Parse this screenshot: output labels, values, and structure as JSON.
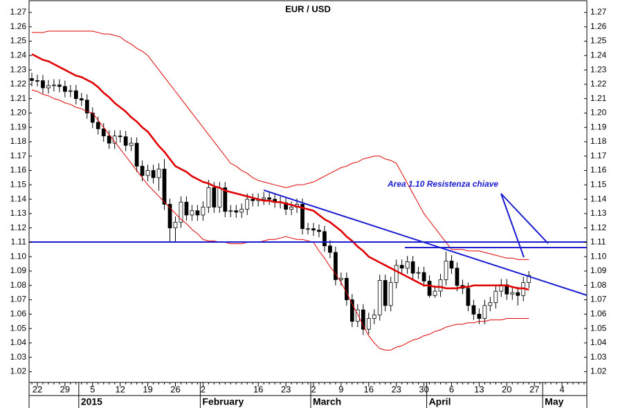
{
  "chart_data": {
    "type": "candlestick",
    "title": "EUR / USD",
    "annotation": "Area 1.10 Resistenza chiave",
    "categories": [
      null,
      "22",
      null,
      null,
      null,
      null,
      "29",
      null,
      null,
      null,
      null,
      "5",
      null,
      null,
      null,
      null,
      "12",
      null,
      null,
      null,
      null,
      "19",
      null,
      null,
      null,
      null,
      "26",
      null,
      null,
      null,
      null,
      "2",
      null,
      null,
      null,
      null,
      null,
      null,
      null,
      null,
      null,
      "16",
      null,
      null,
      null,
      null,
      "23",
      null,
      null,
      null,
      null,
      "2",
      null,
      null,
      null,
      null,
      "9",
      null,
      null,
      null,
      null,
      "16",
      null,
      null,
      null,
      null,
      "23",
      null,
      null,
      null,
      null,
      "30",
      null,
      null,
      null,
      null,
      "6",
      null,
      null,
      null,
      null,
      "13",
      null,
      null,
      null,
      null,
      "20",
      null,
      null,
      null,
      null,
      "27",
      null,
      null,
      null,
      null,
      "4",
      null,
      null,
      null,
      null
    ],
    "periods": [
      null,
      null,
      null,
      null,
      null,
      null,
      null,
      null,
      null,
      "2015",
      null,
      null,
      null,
      null,
      null,
      null,
      null,
      null,
      null,
      null,
      null,
      null,
      null,
      null,
      null,
      null,
      null,
      null,
      null,
      null,
      null,
      "February",
      null,
      null,
      null,
      null,
      null,
      null,
      null,
      null,
      null,
      null,
      null,
      null,
      null,
      null,
      null,
      null,
      null,
      null,
      null,
      "March",
      null,
      null,
      null,
      null,
      null,
      null,
      null,
      null,
      null,
      null,
      null,
      null,
      null,
      null,
      null,
      null,
      null,
      null,
      null,
      null,
      "April",
      null,
      null,
      null,
      null,
      null,
      null,
      null,
      null,
      null,
      null,
      null,
      null,
      null,
      null,
      null,
      null,
      null,
      null,
      null,
      null,
      "May",
      null,
      null,
      null,
      null,
      null
    ],
    "open": [
      1.224,
      1.2226,
      1.2225,
      1.2175,
      1.219,
      1.2195,
      1.2185,
      1.215,
      1.2155,
      1.21,
      1.209,
      1.2,
      1.1935,
      1.189,
      1.184,
      1.179,
      1.184,
      1.1835,
      1.1775,
      1.179,
      1.163,
      1.1565,
      1.16,
      1.155,
      1.161,
      1.1365,
      1.12,
      1.124,
      1.138,
      1.129,
      1.132,
      1.129,
      1.1345,
      1.148,
      1.1345,
      1.148,
      1.1315,
      1.132,
      1.131,
      1.133,
      1.14,
      1.139,
      1.14,
      1.141,
      1.14,
      1.138,
      1.1375,
      1.133,
      1.1345,
      1.1365,
      1.1195,
      1.1195,
      1.1185,
      1.1175,
      1.1075,
      1.103,
      1.084,
      1.085,
      1.07,
      1.055,
      1.063,
      1.0495,
      1.057,
      1.0595,
      1.0835,
      1.066,
      1.082,
      1.094,
      1.092,
      1.0965,
      1.0885,
      1.089,
      1.083,
      1.073,
      1.076,
      1.084,
      1.097,
      1.092,
      1.08,
      1.078,
      1.066,
      1.06,
      1.057,
      1.066,
      1.068,
      1.076,
      1.0805,
      1.074,
      1.075,
      1.073,
      1.082,
      null,
      null,
      null,
      null,
      null,
      null,
      null,
      null,
      null,
      null
    ],
    "high": [
      1.228,
      1.2266,
      1.2265,
      1.223,
      1.2235,
      1.2235,
      1.2225,
      1.2195,
      1.2195,
      1.214,
      1.213,
      1.204,
      1.1975,
      1.193,
      1.188,
      1.188,
      1.188,
      1.1875,
      1.183,
      1.183,
      1.167,
      1.164,
      1.164,
      1.165,
      1.168,
      1.1405,
      1.128,
      1.142,
      1.142,
      1.136,
      1.136,
      1.1385,
      1.1535,
      1.152,
      1.152,
      1.152,
      1.136,
      1.136,
      1.137,
      1.144,
      1.144,
      1.144,
      1.145,
      1.145,
      1.144,
      1.142,
      1.1415,
      1.1385,
      1.1405,
      1.1405,
      1.1235,
      1.1235,
      1.1225,
      1.1215,
      1.1115,
      1.107,
      1.089,
      1.089,
      1.074,
      1.067,
      1.067,
      1.061,
      1.0635,
      1.0875,
      1.0875,
      1.086,
      1.098,
      1.098,
      1.1005,
      1.1005,
      1.093,
      1.093,
      1.087,
      1.08,
      1.088,
      1.1035,
      1.101,
      1.096,
      1.084,
      1.082,
      1.07,
      1.064,
      1.07,
      1.072,
      1.08,
      1.0845,
      1.0845,
      1.079,
      1.079,
      1.086,
      1.09,
      null,
      null,
      null,
      null,
      null,
      null,
      null,
      null,
      null,
      null
    ],
    "low": [
      1.2186,
      1.2185,
      1.2135,
      1.2135,
      1.215,
      1.2145,
      1.211,
      1.211,
      1.206,
      1.205,
      1.196,
      1.1895,
      1.185,
      1.18,
      1.175,
      1.175,
      1.1795,
      1.1735,
      1.1735,
      1.159,
      1.1525,
      1.1525,
      1.151,
      1.146,
      1.1325,
      1.11,
      1.11,
      1.12,
      1.125,
      1.125,
      1.125,
      1.125,
      1.1305,
      1.1305,
      1.1305,
      1.1275,
      1.1275,
      1.127,
      1.127,
      1.129,
      1.135,
      1.135,
      1.136,
      1.136,
      1.134,
      1.1335,
      1.129,
      1.129,
      1.1305,
      1.1155,
      1.1155,
      1.1145,
      1.1135,
      1.1035,
      1.099,
      1.08,
      1.08,
      1.066,
      1.051,
      1.051,
      1.0455,
      1.046,
      1.053,
      1.0555,
      1.062,
      1.062,
      1.078,
      1.088,
      1.088,
      1.0845,
      1.0845,
      1.079,
      1.0715,
      1.0715,
      1.072,
      1.08,
      1.088,
      1.076,
      1.074,
      1.062,
      1.056,
      1.053,
      1.053,
      1.062,
      1.064,
      1.072,
      1.07,
      1.07,
      1.066,
      1.069,
      1.078,
      null,
      null,
      null,
      null,
      null,
      null,
      null,
      null,
      null,
      null
    ],
    "close": [
      1.2226,
      1.2225,
      1.2175,
      1.219,
      1.2195,
      1.2185,
      1.215,
      1.2155,
      1.21,
      1.209,
      1.2,
      1.1935,
      1.189,
      1.184,
      1.179,
      1.184,
      1.1835,
      1.1775,
      1.179,
      1.163,
      1.1565,
      1.16,
      1.155,
      1.161,
      1.1365,
      1.12,
      1.124,
      1.138,
      1.129,
      1.132,
      1.129,
      1.1345,
      1.148,
      1.1345,
      1.148,
      1.1315,
      1.132,
      1.131,
      1.133,
      1.14,
      1.139,
      1.14,
      1.141,
      1.14,
      1.138,
      1.1375,
      1.133,
      1.1345,
      1.1365,
      1.1195,
      1.1195,
      1.1185,
      1.1175,
      1.1075,
      1.103,
      1.084,
      1.085,
      1.07,
      1.055,
      1.063,
      1.0495,
      1.057,
      1.0595,
      1.0835,
      1.066,
      1.082,
      1.094,
      1.092,
      1.0965,
      1.0885,
      1.089,
      1.083,
      1.073,
      1.076,
      1.084,
      1.097,
      1.092,
      1.08,
      1.078,
      1.066,
      1.06,
      1.057,
      1.066,
      1.068,
      1.076,
      1.0805,
      1.074,
      1.075,
      1.073,
      1.082,
      1.087,
      null,
      null,
      null,
      null,
      null,
      null,
      null,
      null,
      null,
      null
    ],
    "up_color": "#ffffff",
    "down_color": "#000000",
    "band_color": "#e00000",
    "bands": {
      "upper": [
        1.256,
        1.256,
        1.256,
        1.257,
        1.257,
        1.257,
        1.257,
        1.257,
        1.257,
        1.257,
        1.257,
        1.257,
        1.256,
        1.255,
        1.255,
        1.254,
        1.253,
        1.25,
        1.248,
        1.245,
        1.243,
        1.24,
        1.235,
        1.23,
        1.225,
        1.22,
        1.215,
        1.21,
        1.205,
        1.2,
        1.195,
        1.19,
        1.185,
        1.18,
        1.175,
        1.17,
        1.165,
        1.163,
        1.16,
        1.158,
        1.155,
        1.153,
        1.152,
        1.151,
        1.15,
        1.149,
        1.148,
        1.149,
        1.15,
        1.15,
        1.151,
        1.152,
        1.154,
        1.156,
        1.158,
        1.16,
        1.162,
        1.163,
        1.165,
        1.166,
        1.168,
        1.169,
        1.17,
        1.17,
        1.168,
        1.167,
        1.165,
        1.158,
        1.151,
        1.144,
        1.137,
        1.13,
        1.125,
        1.12,
        1.115,
        1.11,
        1.105,
        1.105,
        1.105,
        1.104,
        1.104,
        1.104,
        1.103,
        1.102,
        1.101,
        1.1,
        1.099,
        1.099,
        1.098,
        1.098,
        1.098,
        null,
        null,
        null,
        null,
        null,
        null,
        null,
        null,
        null,
        null
      ],
      "middle": [
        1.241,
        1.239,
        1.237,
        1.236,
        1.234,
        1.232,
        1.23,
        1.228,
        1.226,
        1.225,
        1.223,
        1.221,
        1.218,
        1.214,
        1.211,
        1.207,
        1.204,
        1.201,
        1.197,
        1.194,
        1.19,
        1.187,
        1.182,
        1.177,
        1.173,
        1.168,
        1.163,
        1.161,
        1.159,
        1.156,
        1.154,
        1.152,
        1.151,
        1.149,
        1.148,
        1.146,
        1.145,
        1.144,
        1.143,
        1.142,
        1.141,
        1.14,
        1.139,
        1.139,
        1.138,
        1.138,
        1.137,
        1.136,
        1.135,
        1.134,
        1.133,
        1.132,
        1.129,
        1.126,
        1.124,
        1.121,
        1.118,
        1.114,
        1.111,
        1.107,
        1.104,
        1.1,
        1.098,
        1.096,
        1.094,
        1.092,
        1.09,
        1.088,
        1.086,
        1.084,
        1.082,
        1.08,
        1.08,
        1.079,
        1.079,
        1.078,
        1.078,
        1.078,
        1.079,
        1.079,
        1.08,
        1.08,
        1.08,
        1.08,
        1.08,
        1.08,
        1.08,
        1.079,
        1.078,
        1.078,
        1.077,
        null,
        null,
        null,
        null,
        null,
        null,
        null,
        null,
        null,
        null
      ],
      "lower": [
        1.216,
        1.215,
        1.213,
        1.212,
        1.21,
        1.209,
        1.207,
        1.206,
        1.204,
        1.203,
        1.201,
        1.2,
        1.195,
        1.19,
        1.185,
        1.18,
        1.175,
        1.17,
        1.165,
        1.16,
        1.155,
        1.15,
        1.146,
        1.142,
        1.138,
        1.134,
        1.13,
        1.126,
        1.123,
        1.119,
        1.116,
        1.112,
        1.111,
        1.111,
        1.11,
        1.11,
        1.109,
        1.109,
        1.109,
        1.11,
        1.11,
        1.11,
        1.111,
        1.112,
        1.112,
        1.113,
        1.114,
        1.113,
        1.112,
        1.112,
        1.111,
        1.11,
        1.104,
        1.099,
        1.093,
        1.088,
        1.082,
        1.075,
        1.067,
        1.06,
        1.052,
        1.045,
        1.04,
        1.036,
        1.035,
        1.035,
        1.037,
        1.038,
        1.04,
        1.042,
        1.043,
        1.045,
        1.046,
        1.048,
        1.049,
        1.051,
        1.052,
        1.053,
        1.053,
        1.054,
        1.054,
        1.055,
        1.055,
        1.056,
        1.056,
        1.056,
        1.057,
        1.057,
        1.057,
        1.057,
        1.057,
        null,
        null,
        null,
        null,
        null,
        null,
        null,
        null,
        null,
        null
      ]
    },
    "ylim": [
      1.0125,
      1.2748
    ],
    "yticks": [
      1.02,
      1.03,
      1.04,
      1.05,
      1.06,
      1.07,
      1.08,
      1.09,
      {
        "value": 1.1,
        "label": "1.10"
      },
      1.11,
      1.12,
      1.13,
      1.14,
      1.15,
      1.16,
      1.17,
      1.18,
      1.19,
      {
        "value": 1.2,
        "label": "1.20"
      },
      1.21,
      1.22,
      1.23,
      1.24,
      1.25,
      1.26,
      1.27
    ]
  }
}
